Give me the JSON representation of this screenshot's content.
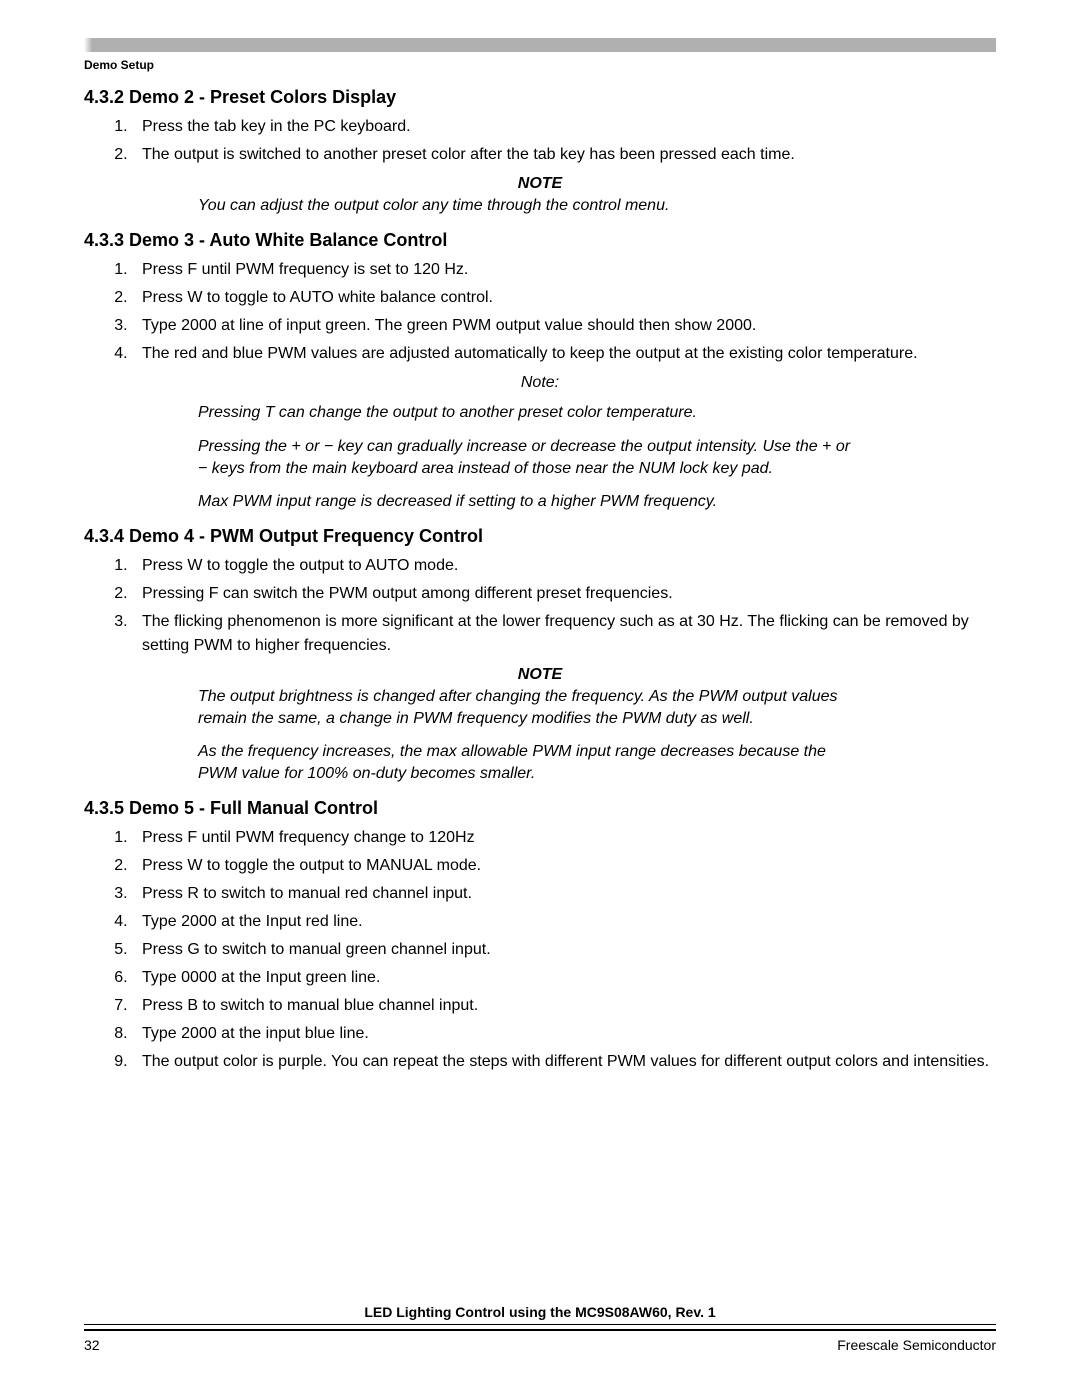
{
  "header": {
    "label": "Demo Setup"
  },
  "sections": {
    "s432": {
      "title": "4.3.2  Demo 2 - Preset Colors Display",
      "items": [
        "Press the tab key in the PC keyboard.",
        "The output is switched to another preset color after the tab key has been pressed each time."
      ],
      "note_heading": "NOTE",
      "note_text": "You can adjust the output color any time through the control menu."
    },
    "s433": {
      "title": "4.3.3  Demo 3 - Auto White Balance Control",
      "items": [
        "Press F until PWM frequency is set to 120 Hz.",
        "Press W to toggle to AUTO white balance control.",
        "Type 2000 at line of input green. The green PWM output value should then show 2000.",
        "The red and blue PWM values are adjusted automatically to keep the output at the existing color temperature."
      ],
      "note_sub": "Note:",
      "note_paras": [
        "Pressing T can change the output to another preset color temperature.",
        "Pressing the + or − key can gradually increase or decrease the output intensity. Use the + or − keys from the main keyboard area instead of those near the NUM lock key pad.",
        "Max PWM input range is decreased if setting to a higher PWM frequency."
      ]
    },
    "s434": {
      "title": "4.3.4  Demo 4 - PWM Output Frequency Control",
      "items": [
        "Press W to toggle the output to AUTO mode.",
        "Pressing F can switch the PWM output among different preset frequencies.",
        "The flicking phenomenon is more significant at the lower frequency such as at 30 Hz. The flicking can be removed by setting PWM to higher frequencies."
      ],
      "note_heading": "NOTE",
      "note_paras": [
        "The output brightness is changed after changing the frequency. As the PWM output values remain the same, a change in PWM frequency modifies the PWM duty as well.",
        "As the frequency increases, the max allowable PWM input range decreases because the PWM value for 100% on-duty becomes smaller."
      ]
    },
    "s435": {
      "title": "4.3.5  Demo 5 - Full Manual Control",
      "items": [
        "Press F until PWM frequency change to 120Hz",
        "Press W to toggle the output to MANUAL mode.",
        "Press R to switch to manual red channel input.",
        "Type 2000 at the Input red line.",
        "Press G to switch to manual green channel input.",
        "Type 0000 at the Input green line.",
        "Press B to switch to manual blue channel input.",
        "Type 2000 at the input blue line.",
        "The output color is purple. You can repeat the steps with different PWM values for different output colors and intensities."
      ]
    }
  },
  "footer": {
    "doc_title": "LED Lighting Control using the MC9S08AW60, Rev. 1",
    "page_number": "32",
    "company": "Freescale Semiconductor"
  }
}
